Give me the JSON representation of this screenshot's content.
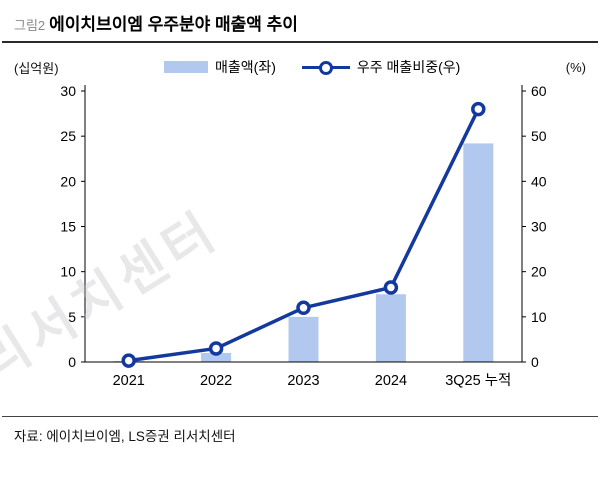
{
  "figure_label": "그림2",
  "title": "에이치브이엠 우주분야 매출액 추이",
  "left_axis_unit": "(십억원)",
  "right_axis_unit": "(%)",
  "legend": {
    "bar_label": "매출액(좌)",
    "line_label": "우주 매출비중(우)"
  },
  "source": "자료: 에이치브이엠, LS증권 리서치센터",
  "watermark": "리서치센터",
  "colors": {
    "bar": "#b3c8ef",
    "line": "#13399e",
    "axis": "#000000"
  },
  "chart_data": {
    "type": "bar",
    "subtype": "bar+line dual axis",
    "categories": [
      "2021",
      "2022",
      "2023",
      "2024",
      "3Q25 누적"
    ],
    "series": [
      {
        "name": "매출액(좌)",
        "type": "bar",
        "axis": "left",
        "values": [
          0.1,
          1.0,
          5.0,
          7.5,
          24.2
        ]
      },
      {
        "name": "우주 매출비중(우)",
        "type": "line",
        "axis": "right",
        "values": [
          0.3,
          3.0,
          12.0,
          16.5,
          56.0
        ]
      }
    ],
    "left_ylabel": "(십억원)",
    "right_ylabel": "(%)",
    "left_ylim": [
      0,
      30
    ],
    "left_ticks": [
      0,
      5,
      10,
      15,
      20,
      25,
      30
    ],
    "right_ylim": [
      0,
      60
    ],
    "right_ticks": [
      0,
      10,
      20,
      30,
      40,
      50,
      60
    ],
    "grid": false,
    "legend_position": "top center"
  }
}
